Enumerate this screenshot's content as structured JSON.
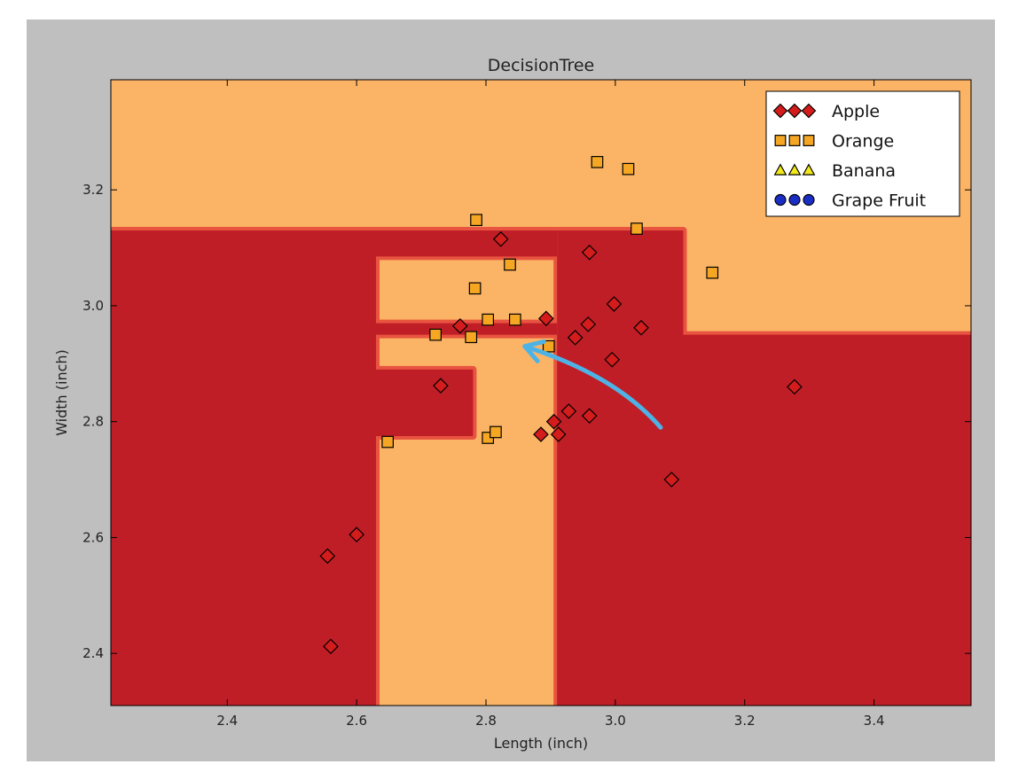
{
  "chart_data": {
    "type": "scatter",
    "title": "DecisionTree",
    "xlabel": "Length (inch)",
    "ylabel": "Width (inch)",
    "xlim": [
      2.22,
      3.55
    ],
    "ylim": [
      2.31,
      3.39
    ],
    "x_ticks": [
      {
        "value": 2.4,
        "label": "2.4"
      },
      {
        "value": 2.6,
        "label": "2.6"
      },
      {
        "value": 2.8,
        "label": "2.8"
      },
      {
        "value": 3.0,
        "label": "3.0"
      },
      {
        "value": 3.2,
        "label": "3.2"
      },
      {
        "value": 3.4,
        "label": "3.4"
      }
    ],
    "y_ticks": [
      {
        "value": 2.4,
        "label": "2.4"
      },
      {
        "value": 2.6,
        "label": "2.6"
      },
      {
        "value": 2.8,
        "label": "2.8"
      },
      {
        "value": 3.0,
        "label": "3.0"
      },
      {
        "value": 3.2,
        "label": "3.2"
      }
    ],
    "grid": false,
    "legend_position": "top-right",
    "region_colors": {
      "Apple": "#c01e27",
      "Orange": "#fbb466",
      "boundary": "#e8543f"
    },
    "regions": [
      {
        "class": "Apple",
        "polygon": [
          [
            2.22,
            2.31
          ],
          [
            2.63,
            2.31
          ],
          [
            2.63,
            3.13
          ],
          [
            2.22,
            3.13
          ]
        ]
      },
      {
        "class": "Apple",
        "polygon": [
          [
            2.91,
            2.31
          ],
          [
            3.55,
            2.31
          ],
          [
            3.55,
            2.95
          ],
          [
            3.105,
            2.95
          ],
          [
            3.105,
            3.13
          ],
          [
            2.91,
            3.13
          ]
        ]
      },
      {
        "class": "Apple",
        "polygon": [
          [
            2.63,
            2.775
          ],
          [
            2.78,
            2.775
          ],
          [
            2.78,
            2.89
          ],
          [
            2.63,
            2.89
          ]
        ]
      },
      {
        "class": "Apple",
        "polygon": [
          [
            2.63,
            2.95
          ],
          [
            2.91,
            2.95
          ],
          [
            2.91,
            2.97
          ],
          [
            2.63,
            2.97
          ]
        ]
      },
      {
        "class": "Apple",
        "polygon": [
          [
            2.63,
            3.085
          ],
          [
            2.91,
            3.085
          ],
          [
            2.91,
            3.13
          ],
          [
            2.63,
            3.13
          ]
        ]
      }
    ],
    "decision_arrow": {
      "color": "#4db3e6",
      "from": [
        3.07,
        2.79
      ],
      "control": [
        3.0,
        2.88
      ],
      "to": [
        2.86,
        2.93
      ]
    },
    "series": [
      {
        "name": "Apple",
        "marker": "diamond",
        "color": "#d41c1c",
        "points": [
          [
            2.555,
            2.568
          ],
          [
            2.6,
            2.605
          ],
          [
            2.56,
            2.412
          ],
          [
            2.73,
            2.862
          ],
          [
            2.76,
            2.965
          ],
          [
            2.823,
            3.115
          ],
          [
            2.893,
            2.978
          ],
          [
            2.96,
            3.092
          ],
          [
            2.998,
            3.003
          ],
          [
            2.958,
            2.968
          ],
          [
            2.938,
            2.945
          ],
          [
            3.04,
            2.962
          ],
          [
            2.995,
            2.907
          ],
          [
            2.905,
            2.8
          ],
          [
            2.928,
            2.818
          ],
          [
            2.96,
            2.81
          ],
          [
            2.885,
            2.778
          ],
          [
            2.912,
            2.778
          ],
          [
            3.087,
            2.7
          ],
          [
            3.277,
            2.86
          ]
        ]
      },
      {
        "name": "Orange",
        "marker": "square",
        "color": "#f5a623",
        "points": [
          [
            2.972,
            3.248
          ],
          [
            3.02,
            3.236
          ],
          [
            2.785,
            3.148
          ],
          [
            3.033,
            3.133
          ],
          [
            2.837,
            3.071
          ],
          [
            2.783,
            3.03
          ],
          [
            2.803,
            2.976
          ],
          [
            2.845,
            2.976
          ],
          [
            2.722,
            2.95
          ],
          [
            2.777,
            2.946
          ],
          [
            2.897,
            2.93
          ],
          [
            3.15,
            3.057
          ],
          [
            2.648,
            2.765
          ],
          [
            2.803,
            2.772
          ],
          [
            2.815,
            2.782
          ]
        ]
      },
      {
        "name": "Banana",
        "marker": "triangle",
        "color": "#f2e81a",
        "points": []
      },
      {
        "name": "Grape Fruit",
        "marker": "circle",
        "color": "#1b2ec4",
        "points": []
      }
    ]
  }
}
